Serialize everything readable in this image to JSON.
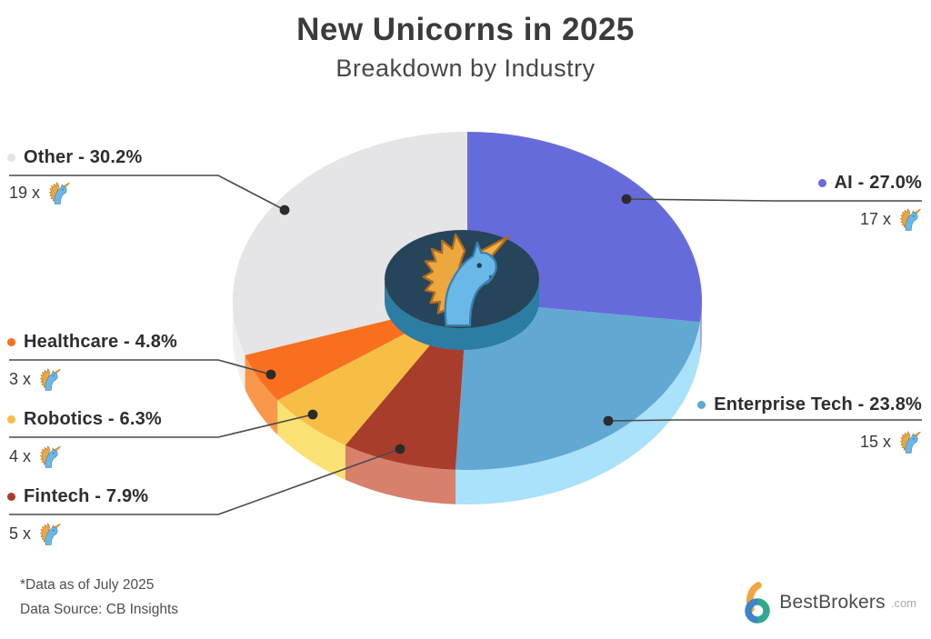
{
  "title": "New Unicorns in 2025",
  "subtitle": "Breakdown by Industry",
  "footnote": {
    "line1": "*Data as of July 2025",
    "line2": "Data Source: CB Insights"
  },
  "brand": {
    "name": "BestBrokers",
    "suffix": ".com",
    "mark_orange": "#F2A53C",
    "mark_blue": "#3D85C6",
    "mark_teal": "#2FA88E"
  },
  "unicorn_icon": {
    "body": "#69B8E8",
    "mane": "#ECA83E",
    "horn": "#EFB340",
    "eye": "#17445C"
  },
  "chart_data": {
    "type": "pie",
    "title": "New Unicorns in 2025",
    "subtitle": "Breakdown by Industry",
    "start_angle_deg": 270,
    "direction": "clockwise",
    "center_icon": "unicorn-head",
    "hub": {
      "top_color": "#26455A",
      "side_color": "#2C7DA4"
    },
    "total_percent": 100,
    "slices": [
      {
        "label": "AI",
        "percent": 27.0,
        "count": 17,
        "display": "AI - 27.0%",
        "count_label": "17 x",
        "color": "#666BDC",
        "side_color": "#A5A6EF"
      },
      {
        "label": "Enterprise Tech",
        "percent": 23.8,
        "count": 15,
        "display": "Enterprise Tech - 23.8%",
        "count_label": "15 x",
        "color": "#61A8D3",
        "side_color": "#A9E2FA"
      },
      {
        "label": "Fintech",
        "percent": 7.9,
        "count": 5,
        "display": "Fintech - 7.9%",
        "count_label": "5 x",
        "color": "#A93D2B",
        "side_color": "#D8806B"
      },
      {
        "label": "Robotics",
        "percent": 6.3,
        "count": 4,
        "display": "Robotics - 6.3%",
        "count_label": "4 x",
        "color": "#F7BE45",
        "side_color": "#FAE173"
      },
      {
        "label": "Healthcare",
        "percent": 4.8,
        "count": 3,
        "display": "Healthcare - 4.8%",
        "count_label": "3 x",
        "color": "#F8701F",
        "side_color": "#F9984B"
      },
      {
        "label": "Other",
        "percent": 30.2,
        "count": 19,
        "display": "Other - 30.2%",
        "count_label": "19 x",
        "color": "#E5E4E6",
        "side_color": "#F0EFF1"
      }
    ]
  }
}
